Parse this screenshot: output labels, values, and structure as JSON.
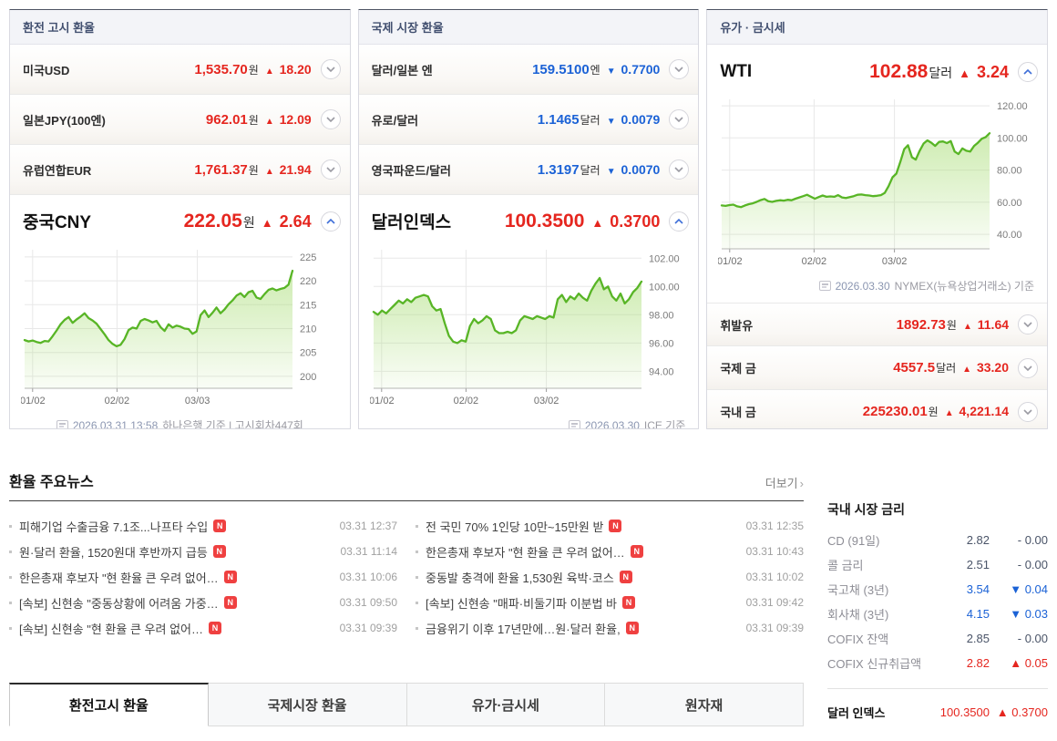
{
  "colors": {
    "up": "#e5261f",
    "down": "#1b62d6",
    "flat": "#4a5468",
    "chart_line": "#58b526",
    "chart_fill": "#a6dc72",
    "header_bg": "#f3f4f8"
  },
  "panels": [
    {
      "title": "환전 고시 환율",
      "expanded_position": "bottom",
      "rows": [
        {
          "label": "미국USD",
          "value": "1,535.70",
          "unit": "원",
          "dir": "up",
          "change": "18.20"
        },
        {
          "label": "일본JPY(100엔)",
          "value": "962.01",
          "unit": "원",
          "dir": "up",
          "change": "12.09"
        },
        {
          "label": "유럽연합EUR",
          "value": "1,761.37",
          "unit": "원",
          "dir": "up",
          "change": "21.94"
        }
      ],
      "expanded": {
        "label": "중국CNY",
        "value": "222.05",
        "unit": "원",
        "dir": "up",
        "change": "2.64"
      },
      "footer": {
        "date": "2026.03.31 13:58",
        "text": "하나은행 기준 | 고시회차447회",
        "align": "center"
      }
    },
    {
      "title": "국제 시장 환율",
      "expanded_position": "bottom",
      "rows": [
        {
          "label": "달러/일본 엔",
          "value": "159.5100",
          "unit": "엔",
          "dir": "down",
          "change": "0.7700"
        },
        {
          "label": "유로/달러",
          "value": "1.1465",
          "unit": "달러",
          "dir": "down",
          "change": "0.0079"
        },
        {
          "label": "영국파운드/달러",
          "value": "1.3197",
          "unit": "달러",
          "dir": "down",
          "change": "0.0070"
        }
      ],
      "expanded": {
        "label": "달러인덱스",
        "value": "100.3500",
        "unit": "",
        "dir": "up",
        "change": "0.3700"
      },
      "footer": {
        "date": "2026.03.30",
        "text": "ICE 기준",
        "align": "right"
      }
    },
    {
      "title": "유가 · 금시세",
      "expanded_position": "top",
      "rows": [
        {
          "label": "휘발유",
          "value": "1892.73",
          "unit": "원",
          "dir": "up",
          "change": "11.64"
        },
        {
          "label": "국제 금",
          "value": "4557.5",
          "unit": "달러",
          "dir": "up",
          "change": "33.20"
        },
        {
          "label": "국내 금",
          "value": "225230.01",
          "unit": "원",
          "dir": "up",
          "change": "4,221.14"
        }
      ],
      "expanded": {
        "label": "WTI",
        "value": "102.88",
        "unit": "달러",
        "dir": "up",
        "change": "3.24"
      },
      "footer": {
        "date": "2026.03.30",
        "text": "NYMEX(뉴욕상업거래소) 기준",
        "align": "right"
      }
    }
  ],
  "chart_data": [
    {
      "type": "area",
      "name": "중국CNY",
      "ylabel": "원",
      "x_labels": [
        "01/02",
        "02/02",
        "03/03"
      ],
      "x_positions": [
        0.03,
        0.345,
        0.645
      ],
      "y_ticks": [
        "225",
        "220",
        "215",
        "210",
        "205",
        "200"
      ],
      "y_tick_values": [
        225,
        220,
        215,
        210,
        205,
        200
      ],
      "ylim": [
        197.5,
        226.5
      ],
      "grid": true,
      "values": [
        207.6,
        207.3,
        207.5,
        207.2,
        207.0,
        207.4,
        207.3,
        208.4,
        209.6,
        210.9,
        211.8,
        212.4,
        211.2,
        211.9,
        212.5,
        213.2,
        212.2,
        211.7,
        211.0,
        209.9,
        208.8,
        207.6,
        206.8,
        206.3,
        206.6,
        207.8,
        209.7,
        210.2,
        210.0,
        211.6,
        212.0,
        211.7,
        211.3,
        211.6,
        210.3,
        209.5,
        210.9,
        210.2,
        210.6,
        210.4,
        210.0,
        209.9,
        208.9,
        209.4,
        212.8,
        213.8,
        212.4,
        213.3,
        214.4,
        213.2,
        214.0,
        215.1,
        215.9,
        216.9,
        217.4,
        216.6,
        217.6,
        217.9,
        216.5,
        216.2,
        217.2,
        218.1,
        218.4,
        218.0,
        218.3,
        218.5,
        219.2,
        222.1
      ]
    },
    {
      "type": "area",
      "name": "달러인덱스",
      "ylabel": "",
      "x_labels": [
        "01/02",
        "02/02",
        "03/02"
      ],
      "x_positions": [
        0.03,
        0.345,
        0.645
      ],
      "y_ticks": [
        "102.00",
        "100.00",
        "98.00",
        "96.00",
        "94.00"
      ],
      "y_tick_values": [
        102,
        100,
        98,
        96,
        94
      ],
      "ylim": [
        92.8,
        102.6
      ],
      "grid": true,
      "values": [
        98.2,
        98.0,
        98.3,
        98.1,
        98.4,
        98.7,
        99.0,
        98.8,
        99.1,
        98.9,
        99.2,
        99.3,
        99.4,
        99.3,
        98.6,
        98.3,
        98.4,
        97.4,
        96.5,
        96.1,
        96.0,
        96.2,
        96.1,
        97.2,
        97.7,
        97.4,
        97.6,
        97.9,
        97.7,
        96.9,
        96.7,
        96.7,
        96.8,
        96.7,
        96.9,
        97.6,
        97.9,
        97.8,
        97.7,
        97.9,
        97.8,
        97.7,
        97.9,
        97.8,
        99.1,
        99.4,
        98.9,
        99.3,
        99.1,
        99.5,
        99.2,
        99.0,
        99.7,
        100.2,
        100.6,
        99.8,
        100.0,
        99.3,
        99.0,
        99.5,
        98.8,
        99.1,
        99.6,
        99.9,
        100.35
      ]
    },
    {
      "type": "area",
      "name": "WTI",
      "ylabel": "달러",
      "x_labels": [
        "01/02",
        "02/02",
        "03/02"
      ],
      "x_positions": [
        0.03,
        0.345,
        0.645
      ],
      "y_ticks": [
        "120.00",
        "100.00",
        "80.00",
        "60.00",
        "40.00"
      ],
      "y_tick_values": [
        120,
        100,
        80,
        60,
        40
      ],
      "ylim": [
        31,
        124
      ],
      "grid": true,
      "values": [
        58.0,
        57.7,
        58.2,
        58.5,
        57.4,
        57.0,
        58.0,
        58.8,
        59.3,
        60.2,
        61.3,
        62.0,
        60.6,
        60.2,
        60.8,
        61.2,
        61.0,
        61.5,
        61.2,
        62.2,
        63.0,
        63.8,
        64.6,
        63.4,
        62.2,
        63.2,
        64.2,
        63.4,
        63.6,
        63.4,
        64.4,
        63.0,
        62.6,
        63.2,
        63.8,
        64.6,
        64.8,
        64.4,
        64.2,
        63.8,
        64.0,
        64.4,
        65.8,
        70.0,
        75.5,
        77.8,
        85.0,
        93.0,
        95.5,
        88.0,
        86.5,
        92.0,
        96.5,
        98.5,
        97.0,
        95.0,
        97.5,
        97.8,
        96.8,
        98.0,
        91.5,
        90.0,
        93.5,
        92.0,
        91.5,
        95.0,
        97.0,
        99.5,
        100.5,
        102.88
      ]
    }
  ],
  "news": {
    "heading": "환율 주요뉴스",
    "more_label": "더보기",
    "col1": [
      {
        "title": "피해기업 수출금융 7.1조...나프타 수입",
        "badge": true,
        "time": "03.31 12:37"
      },
      {
        "title": "원·달러 환율, 1520원대 후반까지 급등",
        "badge": true,
        "time": "03.31 11:14"
      },
      {
        "title": "한은총재 후보자 \"현 환율 큰 우려 없어…",
        "badge": true,
        "time": "03.31 10:06"
      },
      {
        "title": "[속보] 신현송 \"중동상황에 어려움 가중…",
        "badge": true,
        "time": "03.31 09:50"
      },
      {
        "title": "[속보] 신현송 \"현 환율 큰 우려 없어…",
        "badge": true,
        "time": "03.31 09:39"
      }
    ],
    "col2": [
      {
        "title": "전 국민 70% 1인당 10만~15만원 받",
        "badge": true,
        "time": "03.31 12:35"
      },
      {
        "title": "한은총재 후보자 \"현 환율 큰 우려 없어…",
        "badge": true,
        "time": "03.31 10:43"
      },
      {
        "title": "중동발 충격에 환율 1,530원 육박·코스",
        "badge": true,
        "time": "03.31 10:02"
      },
      {
        "title": "[속보] 신현송 \"매파·비둘기파 이분법 바",
        "badge": true,
        "time": "03.31 09:42"
      },
      {
        "title": "금융위기 이후 17년만에…원·달러 환율,",
        "badge": true,
        "time": "03.31 09:39"
      }
    ]
  },
  "tabs": {
    "items": [
      "환전고시 환율",
      "국제시장 환율",
      "유가·금시세",
      "원자재"
    ],
    "active_index": 0
  },
  "rates": {
    "heading": "국내 시장 금리",
    "rows": [
      {
        "label": "CD (91일)",
        "value": "2.82",
        "dir": "flat",
        "change": "0.00"
      },
      {
        "label": "콜 금리",
        "value": "2.51",
        "dir": "flat",
        "change": "0.00"
      },
      {
        "label": "국고채 (3년)",
        "value": "3.54",
        "dir": "down",
        "change": "0.04"
      },
      {
        "label": "회사채 (3년)",
        "value": "4.15",
        "dir": "down",
        "change": "0.03"
      },
      {
        "label": "COFIX 잔액",
        "value": "2.85",
        "dir": "flat",
        "change": "0.00"
      },
      {
        "label": "COFIX 신규취급액",
        "value": "2.82",
        "dir": "up",
        "change": "0.05"
      }
    ],
    "highlight": {
      "label": "달러 인덱스",
      "value": "100.3500",
      "dir": "up",
      "change": "0.3700"
    }
  }
}
